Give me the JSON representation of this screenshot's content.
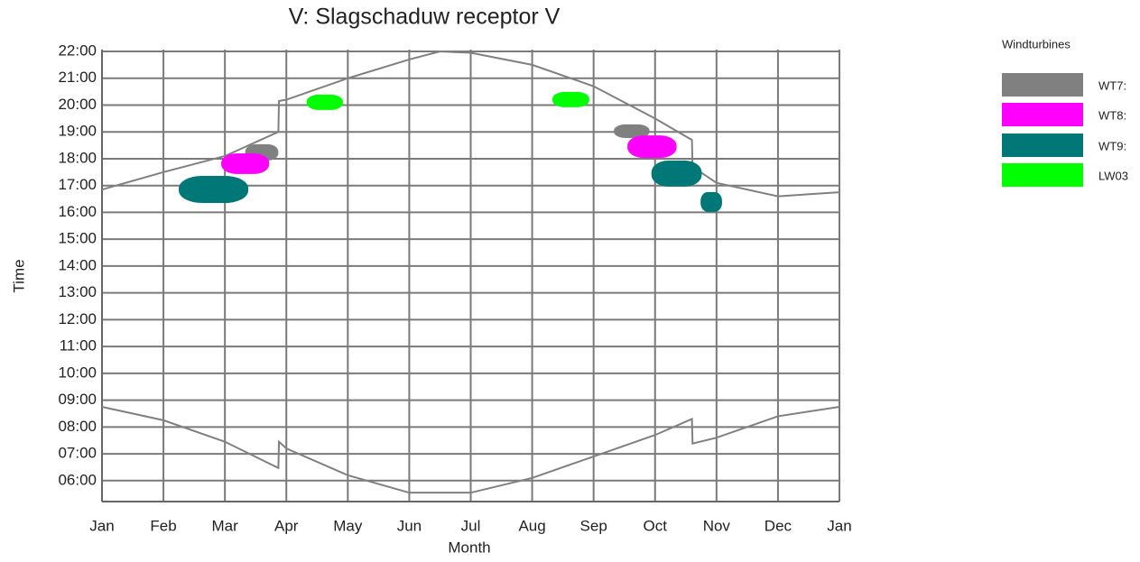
{
  "chart_data": {
    "type": "shadow-calendar",
    "title": "V: Slagschaduw receptor V",
    "x_label": "Month",
    "y_label": "Time",
    "legend_title": "Windturbines",
    "grid": true,
    "xlim": [
      0,
      12
    ],
    "xticks": [
      {
        "value": 0,
        "label": "Jan"
      },
      {
        "value": 1,
        "label": "Feb"
      },
      {
        "value": 2,
        "label": "Mar"
      },
      {
        "value": 3,
        "label": "Apr"
      },
      {
        "value": 4,
        "label": "May"
      },
      {
        "value": 5,
        "label": "Jun"
      },
      {
        "value": 6,
        "label": "Jul"
      },
      {
        "value": 7,
        "label": "Aug"
      },
      {
        "value": 8,
        "label": "Sep"
      },
      {
        "value": 9,
        "label": "Oct"
      },
      {
        "value": 10,
        "label": "Nov"
      },
      {
        "value": 11,
        "label": "Dec"
      },
      {
        "value": 12,
        "label": "Jan"
      }
    ],
    "ylim": [
      5.22,
      22
    ],
    "yticks": [
      {
        "value": 6,
        "label": "06:00"
      },
      {
        "value": 7,
        "label": "07:00"
      },
      {
        "value": 8,
        "label": "08:00"
      },
      {
        "value": 9,
        "label": "09:00"
      },
      {
        "value": 10,
        "label": "10:00"
      },
      {
        "value": 11,
        "label": "11:00"
      },
      {
        "value": 12,
        "label": "12:00"
      },
      {
        "value": 13,
        "label": "13:00"
      },
      {
        "value": 14,
        "label": "14:00"
      },
      {
        "value": 15,
        "label": "15:00"
      },
      {
        "value": 16,
        "label": "16:00"
      },
      {
        "value": 17,
        "label": "17:00"
      },
      {
        "value": 18,
        "label": "18:00"
      },
      {
        "value": 19,
        "label": "19:00"
      },
      {
        "value": 20,
        "label": "20:00"
      },
      {
        "value": 21,
        "label": "21:00"
      },
      {
        "value": 22,
        "label": "22:00"
      }
    ],
    "curves": [
      {
        "color": "#808080",
        "x": [
          0,
          1,
          2,
          2.87,
          2.88,
          3,
          4,
          5,
          5.5,
          6,
          7,
          8,
          9,
          9.6,
          9.61,
          10,
          11,
          12
        ],
        "values": [
          16.85,
          17.5,
          18.1,
          19.0,
          20.15,
          20.2,
          21.0,
          21.7,
          22.0,
          21.95,
          21.5,
          20.7,
          19.5,
          18.7,
          17.7,
          17.1,
          16.6,
          16.75
        ]
      },
      {
        "color": "#808080",
        "x": [
          0,
          1,
          2,
          2.87,
          2.88,
          3,
          4,
          5,
          6,
          7,
          8,
          9,
          9.6,
          9.61,
          10,
          11,
          12
        ],
        "values": [
          8.75,
          8.25,
          7.45,
          6.47,
          7.45,
          7.2,
          6.2,
          5.55,
          5.55,
          6.1,
          6.9,
          7.7,
          8.3,
          7.38,
          7.6,
          8.4,
          8.75
        ]
      }
    ],
    "series": [
      {
        "name": "WT7:",
        "color": "#808080",
        "shapes": [
          {
            "x": [
              2.33,
              2.87
            ],
            "y": [
              17.93,
              18.54
            ]
          },
          {
            "x": [
              8.33,
              8.91
            ],
            "y": [
              18.77,
              19.28
            ]
          }
        ]
      },
      {
        "name": "WT8:",
        "color": "#ff00ff",
        "shapes": [
          {
            "x": [
              1.94,
              2.72
            ],
            "y": [
              17.43,
              18.2
            ]
          },
          {
            "x": [
              8.55,
              9.35
            ],
            "y": [
              18.03,
              18.87
            ]
          }
        ]
      },
      {
        "name": "WT9:",
        "color": "#007878",
        "shapes": [
          {
            "x": [
              1.25,
              2.38
            ],
            "y": [
              16.35,
              17.36
            ]
          },
          {
            "x": [
              8.94,
              9.76
            ],
            "y": [
              16.96,
              17.93
            ]
          },
          {
            "x": [
              9.74,
              10.09
            ],
            "y": [
              16.02,
              16.76
            ]
          }
        ]
      },
      {
        "name": "LW03",
        "color": "#00ff00",
        "shapes": [
          {
            "x": [
              3.33,
              3.92
            ],
            "y": [
              19.82,
              20.39
            ]
          },
          {
            "x": [
              7.33,
              7.93
            ],
            "y": [
              19.92,
              20.49
            ]
          }
        ]
      }
    ]
  }
}
